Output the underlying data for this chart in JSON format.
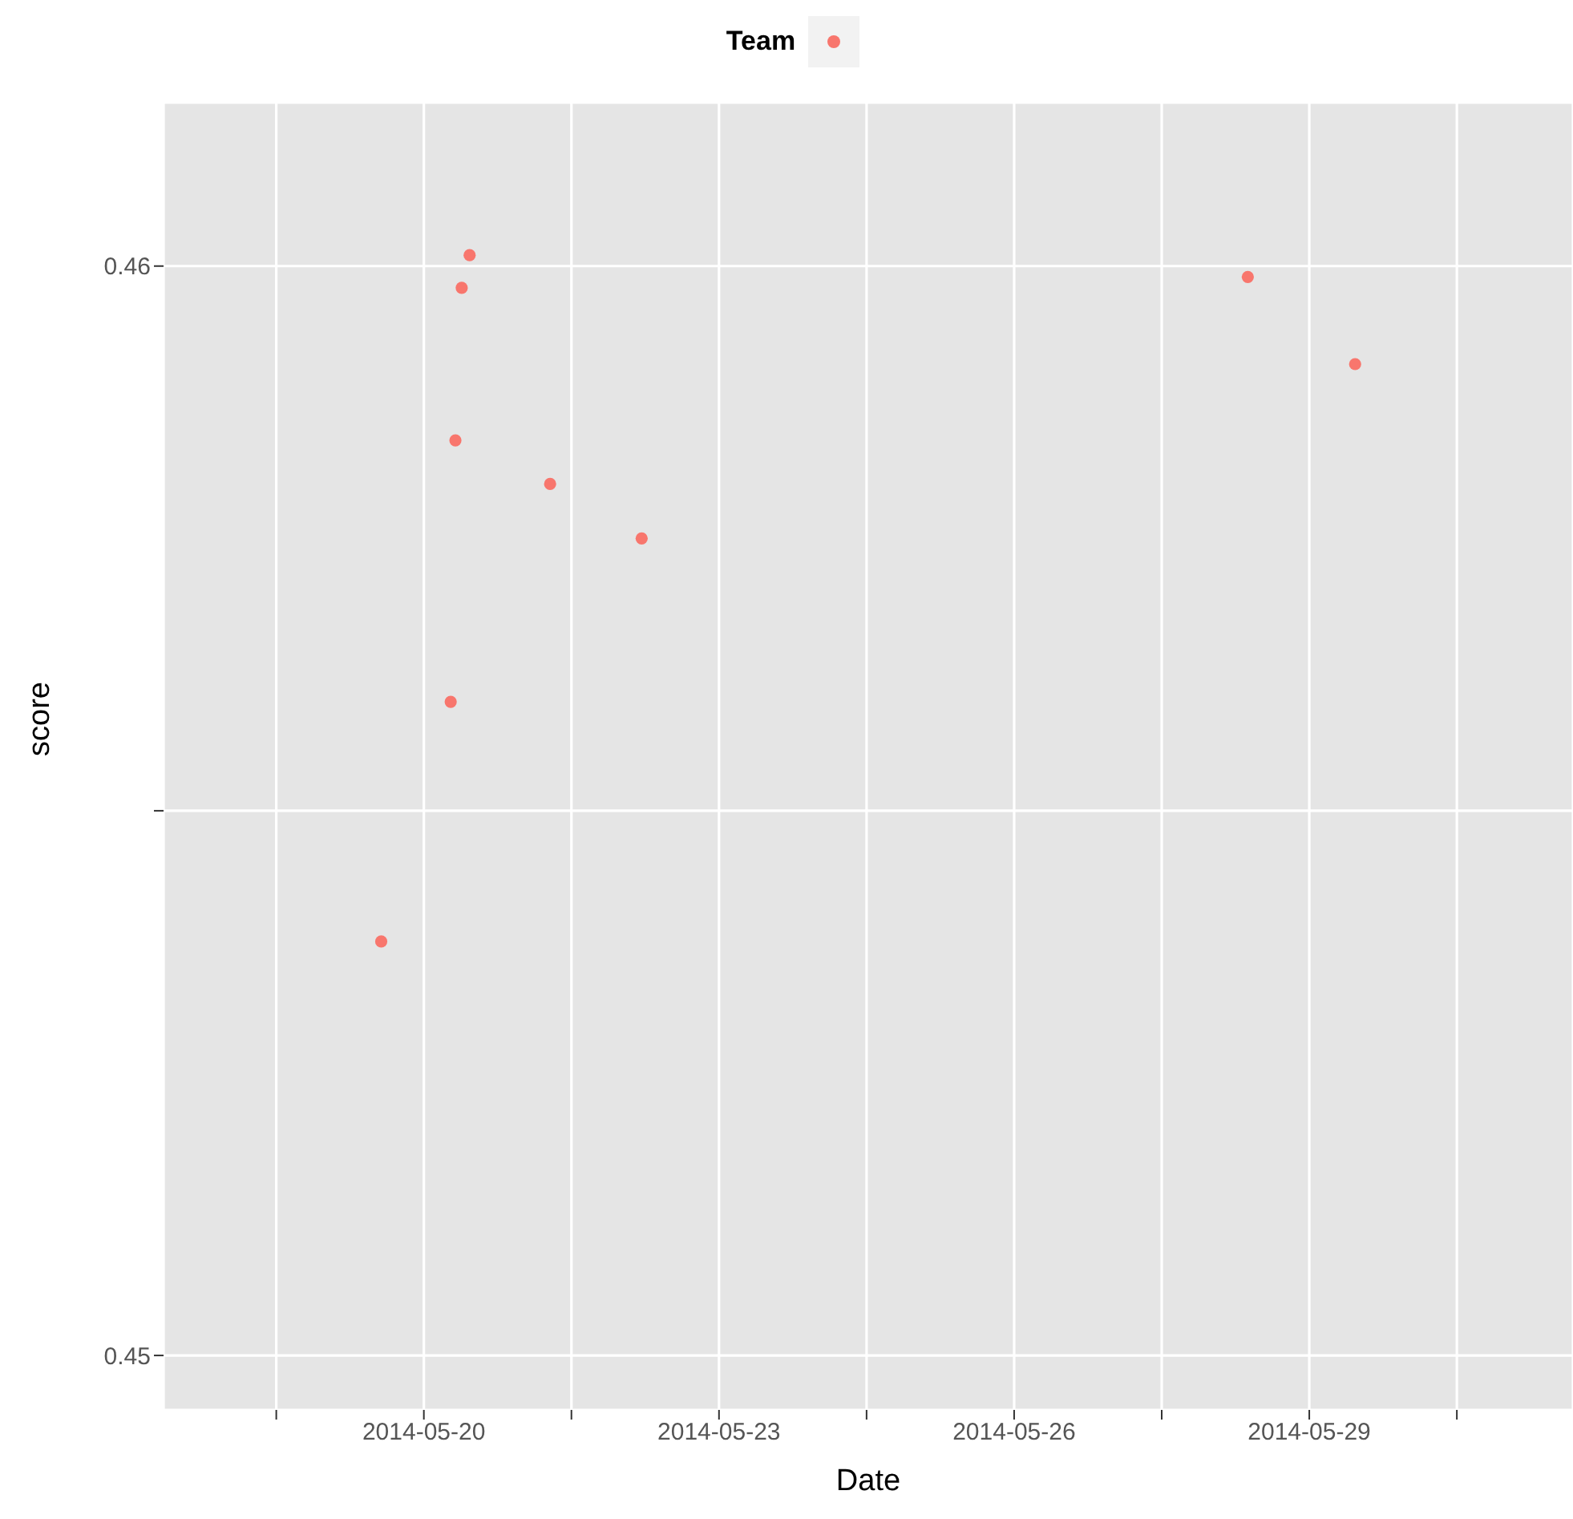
{
  "chart_data": {
    "type": "scatter",
    "xlabel": "Date",
    "ylabel": "score",
    "legend_title": "Team",
    "grid": true,
    "marker": "circle",
    "x": [
      "2014-05-19T13:36",
      "2014-05-20T06:33",
      "2014-05-20T07:42",
      "2014-05-20T09:14",
      "2014-05-20T11:10",
      "2014-05-21T06:48",
      "2014-05-22T05:08",
      "2014-05-28T09:00",
      "2014-05-29T11:11"
    ],
    "series": [
      {
        "color": "#f8766d",
        "values": [
          0.4538,
          0.456,
          0.4584,
          0.4598,
          0.4601,
          0.458,
          0.4575,
          0.4599,
          0.4591
        ]
      }
    ],
    "xlim": [
      "2014-05-17T08:30",
      "2014-05-31T16:20"
    ],
    "xticks": [
      {
        "value": "2014-05-18T12:00",
        "label": null
      },
      {
        "value": "2014-05-20",
        "label": "2014-05-20"
      },
      {
        "value": "2014-05-21T12:00",
        "label": null
      },
      {
        "value": "2014-05-23",
        "label": "2014-05-23"
      },
      {
        "value": "2014-05-24T12:00",
        "label": null
      },
      {
        "value": "2014-05-26",
        "label": "2014-05-26"
      },
      {
        "value": "2014-05-27T12:00",
        "label": null
      },
      {
        "value": "2014-05-29",
        "label": "2014-05-29"
      },
      {
        "value": "2014-05-30T12:00",
        "label": null
      }
    ],
    "ylim": [
      0.4495,
      0.4615
    ],
    "yticks": [
      0.45,
      {
        "value": 0.455,
        "label": null
      },
      0.46
    ]
  }
}
